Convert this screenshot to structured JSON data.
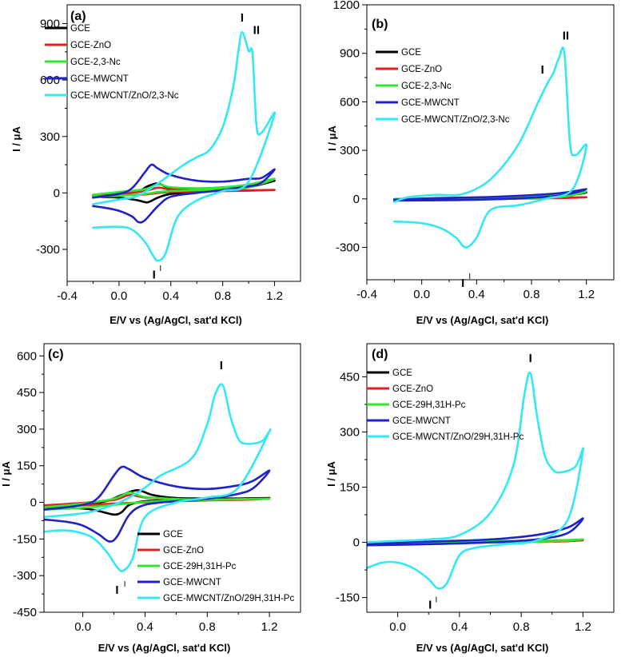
{
  "figure": "cyclic voltammograms",
  "chart_data": [
    {
      "type": "line",
      "panel_label": "(a)",
      "xlabel": "E/V vs (Ag/AgCl, sat'd KCl)",
      "ylabel": "I /  μA",
      "xlim": [
        -0.4,
        1.4
      ],
      "ylim": [
        -470,
        1000
      ],
      "xticks": [
        -0.4,
        0.0,
        0.4,
        0.8,
        1.2
      ],
      "xtick_labels": [
        "-0.4",
        "0.0",
        "0.4",
        "0.8",
        "1.2"
      ],
      "yticks": [
        -300,
        0,
        300,
        600,
        900
      ],
      "ytick_labels": [
        "-300",
        "0",
        "300",
        "600",
        "900"
      ],
      "grid": false,
      "legend_position": "top-left",
      "annotations": [
        {
          "text": "I",
          "x": 0.95,
          "y": 910
        },
        {
          "text": "II",
          "x": 1.06,
          "y": 845
        },
        {
          "text": "I",
          "x": 0.27,
          "y": -455
        },
        {
          "text": "I",
          "x": 0.32,
          "y": -415
        }
      ],
      "series": [
        {
          "name": "GCE",
          "color": "#000000",
          "x": [
            -0.2,
            0.0,
            0.15,
            0.22,
            0.3,
            0.4,
            0.6,
            0.8,
            1.0,
            1.2,
            1.0,
            0.8,
            0.6,
            0.4,
            0.3,
            0.22,
            0.15,
            0.0,
            -0.2
          ],
          "y": [
            -20,
            -25,
            -40,
            -50,
            -25,
            -5,
            5,
            15,
            30,
            65,
            35,
            25,
            20,
            25,
            50,
            35,
            10,
            -5,
            -15
          ]
        },
        {
          "name": "GCE-ZnO",
          "color": "#e02020",
          "x": [
            -0.2,
            0.0,
            0.2,
            0.3,
            0.4,
            0.6,
            0.8,
            1.0,
            1.2,
            1.0,
            0.8,
            0.6,
            0.4,
            0.3,
            0.2,
            0.0,
            -0.2
          ],
          "y": [
            -18,
            -12,
            -8,
            0,
            5,
            8,
            10,
            12,
            16,
            14,
            12,
            12,
            18,
            28,
            10,
            -5,
            -10
          ]
        },
        {
          "name": "GCE-2,3-Nc",
          "color": "#2ee82e",
          "x": [
            -0.2,
            0.0,
            0.2,
            0.3,
            0.4,
            0.6,
            0.8,
            1.0,
            1.2,
            1.0,
            0.8,
            0.6,
            0.4,
            0.3,
            0.2,
            0.0,
            -0.2
          ],
          "y": [
            -20,
            -15,
            -5,
            5,
            10,
            15,
            20,
            30,
            75,
            45,
            30,
            25,
            30,
            45,
            20,
            5,
            -10
          ]
        },
        {
          "name": "GCE-MWCNT",
          "color": "#1f22c8",
          "x": [
            -0.2,
            -0.1,
            0.0,
            0.1,
            0.15,
            0.2,
            0.3,
            0.4,
            0.6,
            0.8,
            1.0,
            1.1,
            1.2,
            1.1,
            1.0,
            0.8,
            0.6,
            0.4,
            0.3,
            0.25,
            0.2,
            0.1,
            0.0,
            -0.2
          ],
          "y": [
            -70,
            -80,
            -95,
            -125,
            -155,
            -145,
            -70,
            -20,
            0,
            15,
            35,
            55,
            125,
            80,
            75,
            60,
            65,
            95,
            130,
            150,
            110,
            25,
            -5,
            -25
          ]
        },
        {
          "name": "GCE-MWCNT/ZnO/2,3-Nc",
          "color": "#33e8f5",
          "x": [
            -0.2,
            0.0,
            0.1,
            0.2,
            0.26,
            0.3,
            0.36,
            0.45,
            0.6,
            0.8,
            1.0,
            1.2,
            1.1,
            1.06,
            1.03,
            1.0,
            0.95,
            0.92,
            0.88,
            0.8,
            0.7,
            0.6,
            0.5,
            0.4,
            0.3,
            0.2,
            0.1,
            0.0,
            -0.2
          ],
          "y": [
            -185,
            -180,
            -195,
            -260,
            -330,
            -360,
            -320,
            -130,
            -40,
            10,
            60,
            420,
            320,
            360,
            740,
            755,
            855,
            750,
            560,
            350,
            230,
            190,
            150,
            100,
            50,
            5,
            -25,
            -35,
            -60
          ]
        }
      ]
    },
    {
      "type": "line",
      "panel_label": "(b)",
      "xlabel": "E/V vs (Ag/AgCl, sat'd KCl)",
      "ylabel": "I /  μA",
      "xlim": [
        -0.4,
        1.4
      ],
      "ylim": [
        -500,
        1200
      ],
      "xticks": [
        -0.4,
        0.0,
        0.4,
        0.8,
        1.2
      ],
      "xtick_labels": [
        "-0.4",
        "0.0",
        "0.4",
        "0.8",
        "1.2"
      ],
      "yticks": [
        -300,
        0,
        300,
        600,
        900,
        1200
      ],
      "ytick_labels": [
        "-300",
        "0",
        "300",
        "600",
        "900",
        "1200"
      ],
      "grid": false,
      "legend_position": "top-left",
      "annotations": [
        {
          "text": "II",
          "x": 1.05,
          "y": 985
        },
        {
          "text": "I",
          "x": 0.88,
          "y": 775
        },
        {
          "text": "I",
          "x": 0.3,
          "y": -545
        },
        {
          "text": "I",
          "x": 0.35,
          "y": -495
        }
      ],
      "series": [
        {
          "name": "GCE",
          "color": "#000000",
          "x": [
            -0.2,
            0.2,
            0.6,
            1.0,
            1.2,
            1.0,
            0.6,
            0.2,
            -0.2
          ],
          "y": [
            -10,
            -6,
            0,
            15,
            40,
            25,
            12,
            6,
            -2
          ]
        },
        {
          "name": "GCE-ZnO",
          "color": "#e02020",
          "x": [
            -0.2,
            0.2,
            0.6,
            1.0,
            1.2,
            1.0,
            0.6,
            0.2,
            -0.2
          ],
          "y": [
            -8,
            -5,
            0,
            5,
            10,
            8,
            5,
            2,
            -3
          ]
        },
        {
          "name": "GCE-2,3-Nc",
          "color": "#2ee82e",
          "x": [
            -0.2,
            0.2,
            0.6,
            1.0,
            1.2,
            1.0,
            0.6,
            0.2,
            -0.2
          ],
          "y": [
            -9,
            -5,
            2,
            12,
            45,
            25,
            12,
            4,
            -2
          ]
        },
        {
          "name": "GCE-MWCNT",
          "color": "#1f22c8",
          "x": [
            -0.2,
            0.2,
            0.6,
            1.0,
            1.2,
            1.0,
            0.6,
            0.2,
            -0.2
          ],
          "y": [
            -10,
            -8,
            0,
            20,
            60,
            35,
            15,
            5,
            -5
          ]
        },
        {
          "name": "GCE-MWCNT/ZnO/2,3-Nc",
          "color": "#33e8f5",
          "x": [
            -0.2,
            0.0,
            0.15,
            0.25,
            0.32,
            0.4,
            0.5,
            0.7,
            0.9,
            1.1,
            1.2,
            1.12,
            1.08,
            1.04,
            1.0,
            0.96,
            0.92,
            0.85,
            0.7,
            0.5,
            0.3,
            0.1,
            -0.1,
            -0.2
          ],
          "y": [
            -140,
            -150,
            -185,
            -240,
            -300,
            -240,
            -70,
            -40,
            0,
            60,
            330,
            270,
            350,
            900,
            870,
            780,
            720,
            600,
            330,
            120,
            30,
            25,
            10,
            -20
          ]
        }
      ]
    },
    {
      "type": "line",
      "panel_label": "(c)",
      "xlabel": "E/V vs (Ag/AgCl, sat'd KCl)",
      "ylabel": "I /  μA",
      "xlim": [
        -0.25,
        1.4
      ],
      "ylim": [
        -450,
        650
      ],
      "xticks": [
        0.0,
        0.4,
        0.8,
        1.2
      ],
      "xtick_labels": [
        "0.0",
        "0.4",
        "0.8",
        "1.2"
      ],
      "yticks": [
        -450,
        -300,
        -150,
        0,
        150,
        300,
        450,
        600
      ],
      "ytick_labels": [
        "-450",
        "-300",
        "-150",
        "0",
        "150",
        "300",
        "450",
        "600"
      ],
      "grid": false,
      "legend_position": "bottom-right",
      "annotations": [
        {
          "text": "I",
          "x": 0.89,
          "y": 545
        },
        {
          "text": "I",
          "x": 0.22,
          "y": -375
        },
        {
          "text": "I",
          "x": 0.27,
          "y": -345
        }
      ],
      "series": [
        {
          "name": "GCE",
          "color": "#000000",
          "x": [
            -0.25,
            0.0,
            0.1,
            0.2,
            0.25,
            0.3,
            0.4,
            0.6,
            0.8,
            1.0,
            1.2,
            1.0,
            0.8,
            0.6,
            0.45,
            0.35,
            0.25,
            0.15,
            0.0,
            -0.25
          ],
          "y": [
            -20,
            -25,
            -35,
            -50,
            -40,
            -10,
            5,
            10,
            12,
            14,
            18,
            16,
            16,
            18,
            30,
            50,
            30,
            5,
            -10,
            -15
          ]
        },
        {
          "name": "GCE-ZnO",
          "color": "#e02020",
          "x": [
            -0.25,
            0.0,
            0.2,
            0.4,
            0.6,
            0.8,
            1.0,
            1.2,
            1.0,
            0.8,
            0.6,
            0.4,
            0.3,
            0.2,
            0.0,
            -0.25
          ],
          "y": [
            -20,
            -12,
            -5,
            0,
            5,
            8,
            10,
            15,
            13,
            12,
            12,
            20,
            30,
            10,
            -2,
            -12
          ]
        },
        {
          "name": "GCE-29H,31H-Pc",
          "color": "#2ee82e",
          "x": [
            -0.25,
            0.0,
            0.2,
            0.4,
            0.6,
            0.8,
            1.0,
            1.2,
            1.0,
            0.8,
            0.6,
            0.4,
            0.3,
            0.2,
            0.0,
            -0.25
          ],
          "y": [
            -30,
            -22,
            -10,
            2,
            8,
            10,
            12,
            15,
            13,
            12,
            14,
            22,
            40,
            15,
            -5,
            -20
          ]
        },
        {
          "name": "GCE-MWCNT",
          "color": "#1f22c8",
          "x": [
            -0.25,
            -0.1,
            0.0,
            0.1,
            0.17,
            0.22,
            0.3,
            0.4,
            0.6,
            0.8,
            1.0,
            1.1,
            1.2,
            1.1,
            1.0,
            0.8,
            0.6,
            0.4,
            0.3,
            0.25,
            0.2,
            0.1,
            0.0,
            -0.25
          ],
          "y": [
            -70,
            -80,
            -95,
            -130,
            -160,
            -140,
            -50,
            -10,
            5,
            15,
            35,
            60,
            130,
            90,
            70,
            55,
            65,
            100,
            135,
            145,
            110,
            20,
            -10,
            -30
          ]
        },
        {
          "name": "GCE-MWCNT/ZnO/29H,31H-Pc",
          "color": "#33e8f5",
          "x": [
            -0.25,
            -0.1,
            0.05,
            0.15,
            0.22,
            0.26,
            0.32,
            0.4,
            0.6,
            0.8,
            1.0,
            1.2,
            1.15,
            1.05,
            1.0,
            0.95,
            0.9,
            0.85,
            0.8,
            0.7,
            0.5,
            0.4,
            0.3,
            0.2,
            0.1,
            0.0,
            -0.25
          ],
          "y": [
            -120,
            -115,
            -140,
            -200,
            -265,
            -280,
            -230,
            -60,
            0,
            20,
            60,
            290,
            250,
            240,
            260,
            350,
            480,
            440,
            320,
            180,
            110,
            60,
            20,
            -10,
            -30,
            -45,
            -60
          ]
        }
      ]
    },
    {
      "type": "line",
      "panel_label": "(d)",
      "xlabel": "E/V vs (Ag/AgCl, sat'd KCl)",
      "ylabel": "I /  μA",
      "xlim": [
        -0.2,
        1.4
      ],
      "ylim": [
        -190,
        540
      ],
      "xticks": [
        0.0,
        0.4,
        0.8,
        1.2
      ],
      "xtick_labels": [
        "0.0",
        "0.4",
        "0.8",
        "1.2"
      ],
      "yticks": [
        -150,
        0,
        150,
        300,
        450
      ],
      "ytick_labels": [
        "-150",
        "0",
        "150",
        "300",
        "450"
      ],
      "grid": false,
      "legend_position": "top-left",
      "annotations": [
        {
          "text": "I",
          "x": 0.86,
          "y": 490
        },
        {
          "text": "I",
          "x": 0.21,
          "y": -180
        },
        {
          "text": "I",
          "x": 0.25,
          "y": -163
        }
      ],
      "series": [
        {
          "name": "GCE",
          "color": "#000000",
          "x": [
            -0.2,
            0.2,
            0.6,
            1.0,
            1.2,
            1.0,
            0.6,
            0.2,
            -0.2
          ],
          "y": [
            -6,
            -3,
            0,
            3,
            6,
            5,
            3,
            1,
            -3
          ]
        },
        {
          "name": "GCE-ZnO",
          "color": "#e02020",
          "x": [
            -0.2,
            0.2,
            0.6,
            1.0,
            1.2,
            1.0,
            0.6,
            0.2,
            -0.2
          ],
          "y": [
            -6,
            -3,
            0,
            2,
            5,
            4,
            2,
            0,
            -3
          ]
        },
        {
          "name": "GCE-29H,31H-Pc",
          "color": "#2ee82e",
          "x": [
            -0.2,
            0.2,
            0.6,
            1.0,
            1.2,
            1.0,
            0.6,
            0.2,
            -0.2
          ],
          "y": [
            -7,
            -3,
            0,
            3,
            8,
            5,
            3,
            1,
            -3
          ]
        },
        {
          "name": "GCE-MWCNT",
          "color": "#1f22c8",
          "x": [
            -0.2,
            0.2,
            0.6,
            0.9,
            1.1,
            1.2,
            1.1,
            0.9,
            0.6,
            0.2,
            -0.2
          ],
          "y": [
            -8,
            -5,
            0,
            8,
            25,
            65,
            40,
            20,
            8,
            2,
            -4
          ]
        },
        {
          "name": "GCE-MWCNT/ZnO/29H,31H-Pc",
          "color": "#33e8f5",
          "x": [
            -0.2,
            -0.1,
            0.0,
            0.1,
            0.2,
            0.26,
            0.32,
            0.4,
            0.5,
            0.7,
            0.9,
            1.1,
            1.2,
            1.15,
            1.05,
            1.0,
            0.95,
            0.9,
            0.86,
            0.82,
            0.75,
            0.6,
            0.4,
            0.2,
            0.0,
            -0.2
          ],
          "y": [
            -70,
            -55,
            -55,
            -70,
            -100,
            -125,
            -110,
            -35,
            -15,
            -5,
            5,
            60,
            250,
            205,
            190,
            200,
            240,
            350,
            460,
            400,
            210,
            80,
            20,
            8,
            4,
            0
          ]
        }
      ]
    }
  ]
}
